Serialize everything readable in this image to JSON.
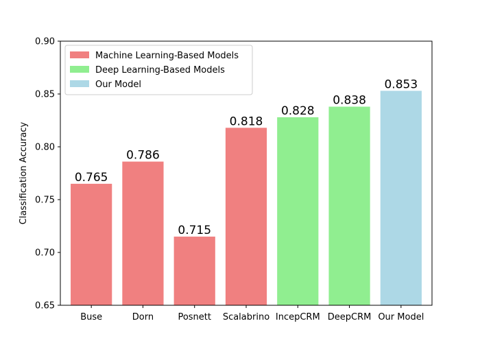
{
  "chart_data": {
    "type": "bar",
    "title": "",
    "xlabel": "",
    "ylabel": "Classification Accuracy",
    "ylim": [
      0.65,
      0.9
    ],
    "yticks": [
      "0.65",
      "0.70",
      "0.75",
      "0.80",
      "0.85",
      "0.90"
    ],
    "categories": [
      "Buse",
      "Dorn",
      "Posnett",
      "Scalabrino",
      "IncepCRM",
      "DeepCRM",
      "Our Model"
    ],
    "values": [
      0.765,
      0.786,
      0.715,
      0.818,
      0.828,
      0.838,
      0.853
    ],
    "value_labels": [
      "0.765",
      "0.786",
      "0.715",
      "0.818",
      "0.828",
      "0.838",
      "0.853"
    ],
    "groups": [
      0,
      0,
      0,
      0,
      1,
      1,
      2
    ],
    "legend": {
      "placement": "top-left",
      "entries": [
        {
          "name": "Machine Learning-Based Models",
          "color": "#f08080"
        },
        {
          "name": "Deep Learning-Based Models",
          "color": "#90ee90"
        },
        {
          "name": "Our Model",
          "color": "#add8e6"
        }
      ]
    },
    "grid": false
  }
}
